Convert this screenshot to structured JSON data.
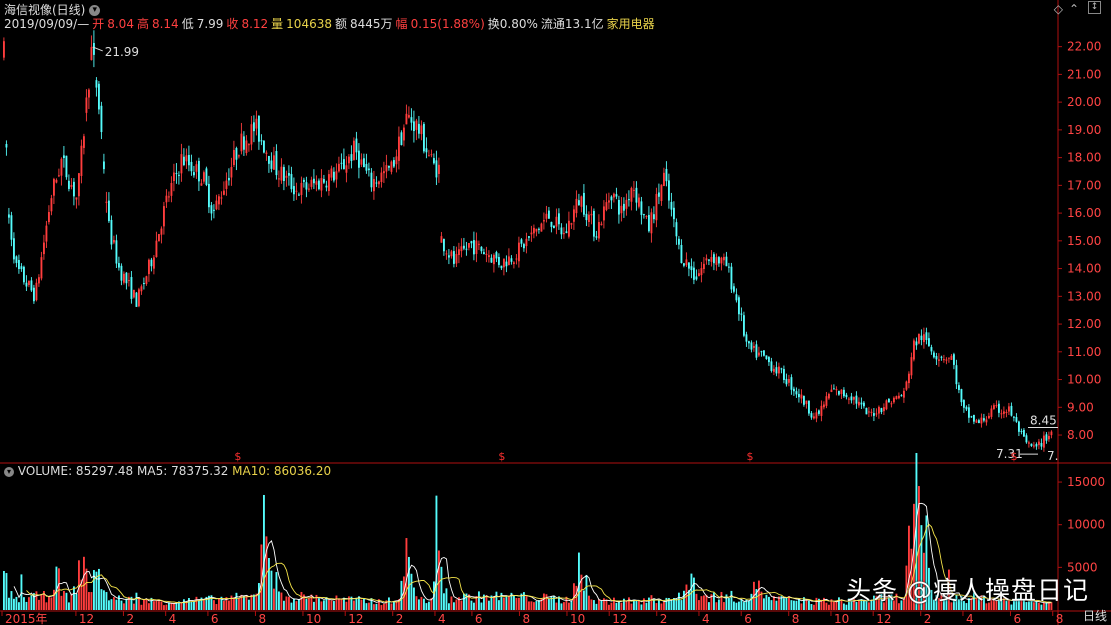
{
  "header": {
    "title": "海信视像(日线)",
    "date": "2019/09/09/—",
    "open_label": "开",
    "open": "8.04",
    "high_label": "高",
    "high": "8.14",
    "low_label": "低",
    "low": "7.99",
    "close_label": "收",
    "close": "8.12",
    "vol_label": "量",
    "vol": "104638",
    "amount_label": "额",
    "amount": "8445万",
    "change_label": "幅",
    "change": "0.15(1.88%)",
    "turnover": "换0.80%",
    "float": "流通13.1亿",
    "industry": "家用电器"
  },
  "volume_header": {
    "label": "VOLUME: 85297.48",
    "ma5": "MA5: 78375.32",
    "ma10": "MA10: 86036.20"
  },
  "footer": {
    "period": "日线"
  },
  "watermark": "头条 @痩人操盘日记",
  "colors": {
    "up": "#ff3d3d",
    "down": "#54fcfc",
    "ma5": "#ffffff",
    "ma10": "#f5e44a",
    "axis": "#b01010"
  },
  "chart_data": [
    {
      "type": "candlestick",
      "title": "海信视像(日线)",
      "ylim": [
        7.1,
        22.6
      ],
      "y_ticks": [
        "22.00",
        "21.00",
        "20.00",
        "19.00",
        "18.00",
        "17.00",
        "16.00",
        "15.00",
        "14.00",
        "13.00",
        "12.00",
        "11.00",
        "10.00",
        "9.00",
        "8.00"
      ],
      "annotations": [
        {
          "text": "21.99",
          "x": 0.084,
          "value": 21.99
        },
        {
          "text": "8.45",
          "x": 1.0,
          "value": 8.45
        },
        {
          "text": "7.31",
          "x": 0.975,
          "value": 7.31
        },
        {
          "text": "7.",
          "x": 0.995,
          "value": 7.31
        }
      ],
      "dividend_markers": [
        "$",
        "$",
        "$",
        "$"
      ],
      "anchors": [
        [
          0.0,
          21.8
        ],
        [
          0.004,
          16.0
        ],
        [
          0.012,
          14.0
        ],
        [
          0.03,
          13.0
        ],
        [
          0.045,
          16.6
        ],
        [
          0.055,
          17.9
        ],
        [
          0.07,
          16.5
        ],
        [
          0.084,
          21.99
        ],
        [
          0.092,
          19.4
        ],
        [
          0.1,
          15.5
        ],
        [
          0.11,
          14.0
        ],
        [
          0.12,
          13.3
        ],
        [
          0.127,
          12.8
        ],
        [
          0.14,
          14.2
        ],
        [
          0.155,
          16.4
        ],
        [
          0.17,
          18.0
        ],
        [
          0.19,
          17.3
        ],
        [
          0.2,
          16.0
        ],
        [
          0.225,
          18.5
        ],
        [
          0.24,
          19.1
        ],
        [
          0.26,
          17.6
        ],
        [
          0.28,
          16.8
        ],
        [
          0.3,
          17.1
        ],
        [
          0.32,
          17.5
        ],
        [
          0.335,
          18.3
        ],
        [
          0.35,
          17.1
        ],
        [
          0.37,
          17.6
        ],
        [
          0.385,
          19.5
        ],
        [
          0.395,
          19.1
        ],
        [
          0.41,
          17.7
        ],
        [
          0.416,
          17.6
        ],
        [
          0.417,
          15.1
        ],
        [
          0.43,
          14.2
        ],
        [
          0.445,
          14.9
        ],
        [
          0.46,
          14.6
        ],
        [
          0.475,
          14.2
        ],
        [
          0.49,
          14.6
        ],
        [
          0.52,
          15.9
        ],
        [
          0.535,
          15.2
        ],
        [
          0.55,
          16.6
        ],
        [
          0.565,
          15.3
        ],
        [
          0.58,
          16.8
        ],
        [
          0.59,
          16.0
        ],
        [
          0.6,
          17.1
        ],
        [
          0.615,
          15.4
        ],
        [
          0.63,
          17.3
        ],
        [
          0.645,
          14.6
        ],
        [
          0.66,
          13.7
        ],
        [
          0.675,
          14.5
        ],
        [
          0.69,
          14.1
        ],
        [
          0.7,
          12.8
        ],
        [
          0.71,
          11.1
        ],
        [
          0.725,
          10.8
        ],
        [
          0.745,
          10.1
        ],
        [
          0.76,
          9.4
        ],
        [
          0.775,
          8.6
        ],
        [
          0.79,
          9.6
        ],
        [
          0.81,
          9.4
        ],
        [
          0.825,
          8.7
        ],
        [
          0.845,
          9.2
        ],
        [
          0.86,
          9.5
        ],
        [
          0.868,
          11.2
        ],
        [
          0.875,
          11.6
        ],
        [
          0.89,
          10.9
        ],
        [
          0.905,
          10.8
        ],
        [
          0.915,
          8.9
        ],
        [
          0.93,
          8.4
        ],
        [
          0.945,
          8.9
        ],
        [
          0.96,
          8.9
        ],
        [
          0.975,
          7.7
        ],
        [
          0.985,
          7.5
        ],
        [
          1.0,
          8.12
        ]
      ]
    },
    {
      "type": "bar",
      "title": "VOLUME",
      "ylim": [
        0,
        17000
      ],
      "y_ticks": [
        "15000",
        "10000",
        "5000"
      ],
      "series": [
        {
          "name": "VOLUME",
          "last": 85297.48
        },
        {
          "name": "MA5",
          "last": 78375.32
        },
        {
          "name": "MA10",
          "last": 86036.2
        }
      ],
      "peaks": [
        [
          0.0,
          3900
        ],
        [
          0.05,
          4300
        ],
        [
          0.075,
          6200
        ],
        [
          0.09,
          5000
        ],
        [
          0.25,
          10200
        ],
        [
          0.385,
          6500
        ],
        [
          0.415,
          5200
        ],
        [
          0.55,
          5800
        ],
        [
          0.655,
          4100
        ],
        [
          0.72,
          3600
        ],
        [
          0.87,
          15000
        ],
        [
          0.88,
          5000
        ]
      ]
    }
  ],
  "x_axis": {
    "labels": [
      "2015年",
      "12",
      "2",
      "4",
      "6",
      "8",
      "10",
      "12",
      "2",
      "4",
      "6",
      "8",
      "10",
      "12",
      "2",
      "4",
      "6",
      "8",
      "10",
      "12",
      "2",
      "4",
      "6",
      "8"
    ],
    "positions": [
      0.0,
      0.07,
      0.115,
      0.155,
      0.195,
      0.24,
      0.285,
      0.325,
      0.37,
      0.41,
      0.445,
      0.49,
      0.535,
      0.575,
      0.62,
      0.66,
      0.7,
      0.745,
      0.785,
      0.825,
      0.87,
      0.91,
      0.955,
      0.995
    ]
  }
}
